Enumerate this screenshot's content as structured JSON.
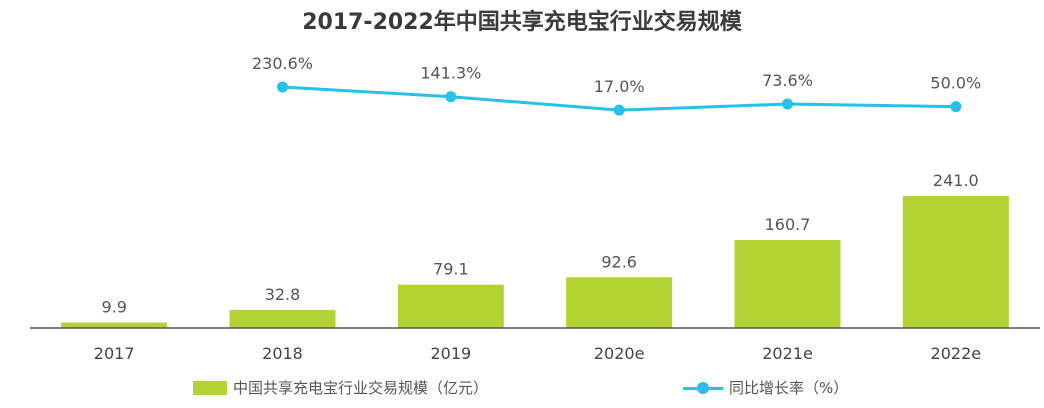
{
  "chart_data": {
    "type": "bar",
    "title": "2017-2022年中国共享充电宝行业交易规模",
    "categories": [
      "2017",
      "2018",
      "2019",
      "2020e",
      "2021e",
      "2022e"
    ],
    "series": [
      {
        "name": "中国共享充电宝行业交易规模（亿元）",
        "type": "bar",
        "values": [
          9.9,
          32.8,
          79.1,
          92.6,
          160.7,
          241.0
        ],
        "labels": [
          "9.9",
          "32.8",
          "79.1",
          "92.6",
          "160.7",
          "241.0"
        ],
        "color": "#b3d233"
      },
      {
        "name": "同比增长率（%）",
        "type": "line",
        "values": [
          null,
          230.6,
          141.3,
          17.0,
          73.6,
          50.0
        ],
        "labels": [
          "",
          "230.6%",
          "141.3%",
          "17.0%",
          "73.6%",
          "50.0%"
        ],
        "color": "#26c0e8"
      }
    ],
    "ylim_bar": [
      0,
      260
    ],
    "grid": false,
    "legend_position": "bottom"
  },
  "legend": {
    "bar_label": "中国共享充电宝行业交易规模（亿元）",
    "line_label": "同比增长率（%）"
  }
}
